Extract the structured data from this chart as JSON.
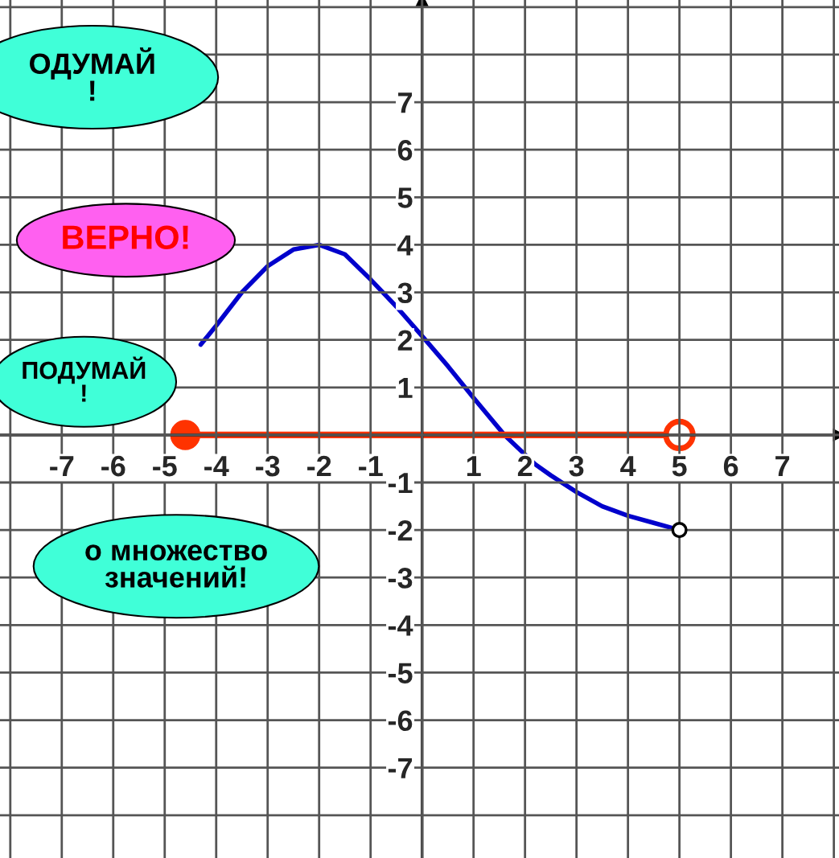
{
  "chart_data": {
    "type": "line",
    "xlim": [
      -8.2,
      8.1
    ],
    "ylim": [
      -8.9,
      9.15
    ],
    "xticks": [
      {
        "value": -8,
        "label": null
      },
      -7,
      -6,
      -5,
      -4,
      -3,
      -2,
      -1,
      {
        "value": 0,
        "label": null
      },
      1,
      2,
      3,
      4,
      5,
      6,
      7,
      {
        "value": 8,
        "label": null
      }
    ],
    "yticks": [
      {
        "value": -8,
        "label": null
      },
      -7,
      -6,
      -5,
      -4,
      -3,
      -2,
      -1,
      {
        "value": 0,
        "label": null
      },
      1,
      2,
      3,
      4,
      5,
      6,
      7,
      {
        "value": 8,
        "label": null
      },
      {
        "value": 9,
        "label": null
      }
    ],
    "grid": true,
    "series": [
      {
        "color": "#0000cc",
        "x": [
          -4.3,
          -4,
          -3.5,
          -3,
          -2.5,
          -2,
          -1.5,
          -1,
          -0.5,
          0,
          0.5,
          1,
          1.6,
          2.2,
          2.5,
          3,
          3.5,
          4,
          4.5,
          5
        ],
        "values": [
          1.9,
          2.3,
          3.0,
          3.55,
          3.9,
          4,
          3.8,
          3.27,
          2.7,
          2.08,
          1.45,
          0.78,
          0,
          -0.62,
          -0.85,
          -1.2,
          -1.5,
          -1.7,
          -1.85,
          -2
        ]
      },
      {
        "color": "#ff3300",
        "marker": "circle",
        "x": [
          -4.6,
          5
        ],
        "values": [
          0,
          0
        ]
      }
    ],
    "annotations": [
      "ОДУМАЙ\n!",
      "ВЕРНО!",
      "ПОДУМАЙ\n!",
      "о множество\nзначений!"
    ]
  }
}
